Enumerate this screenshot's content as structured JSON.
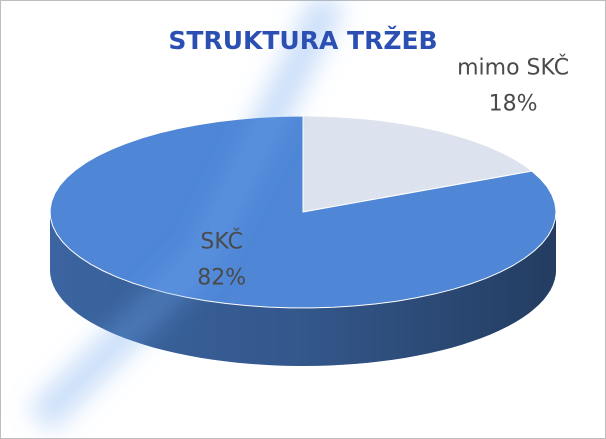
{
  "chart_data": {
    "type": "pie",
    "title": "STRUKTURA TRŽEB",
    "categories": [
      "mimo SKČ",
      "SKČ"
    ],
    "values": [
      18,
      82
    ],
    "value_labels": [
      "18%",
      "82%"
    ],
    "colors": [
      "#dde3ee",
      "#4f86d6"
    ]
  }
}
